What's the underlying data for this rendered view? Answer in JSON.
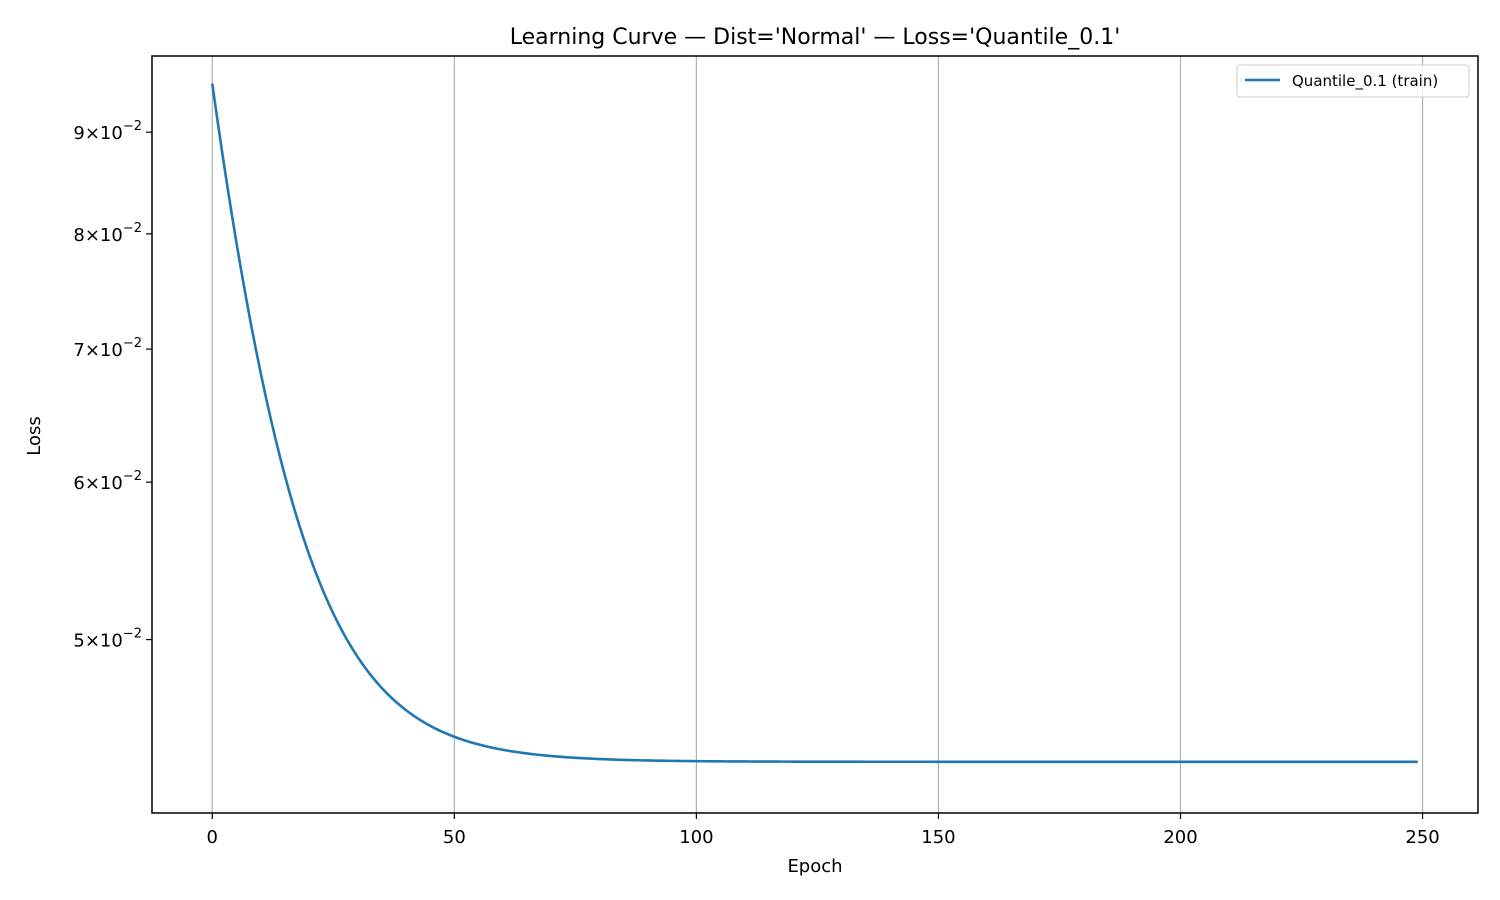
{
  "chart_data": {
    "type": "line",
    "title": "Learning Curve — Dist='Normal' — Loss='Quantile_0.1'",
    "xlabel": "Epoch",
    "ylabel": "Loss",
    "xlim": [
      -12.45,
      261.45
    ],
    "ylim": [
      0.0409,
      0.0983
    ],
    "yscale": "log",
    "grid": "x-major",
    "legend_position": "top-right",
    "x_ticks": [
      0,
      50,
      100,
      150,
      200,
      250
    ],
    "x_tick_labels": [
      "0",
      "50",
      "100",
      "150",
      "200",
      "250"
    ],
    "y_ticks": [
      0.05,
      0.06,
      0.07,
      0.08,
      0.09
    ],
    "y_tick_labels": [
      {
        "mantissa": "5",
        "times": "×",
        "base": "10",
        "exp": "−2"
      },
      {
        "mantissa": "6",
        "times": "×",
        "base": "10",
        "exp": "−2"
      },
      {
        "mantissa": "7",
        "times": "×",
        "base": "10",
        "exp": "−2"
      },
      {
        "mantissa": "8",
        "times": "×",
        "base": "10",
        "exp": "−2"
      },
      {
        "mantissa": "9",
        "times": "×",
        "base": "10",
        "exp": "−2"
      }
    ],
    "series": [
      {
        "name": "Quantile_0.1 (train)",
        "color": "#1f77b4",
        "model": {
          "type": "exp_decay",
          "floor": 0.0434,
          "amplitude": 0.0518,
          "tau": 13.5
        },
        "x_start": 0,
        "x_end": 249
      }
    ]
  }
}
